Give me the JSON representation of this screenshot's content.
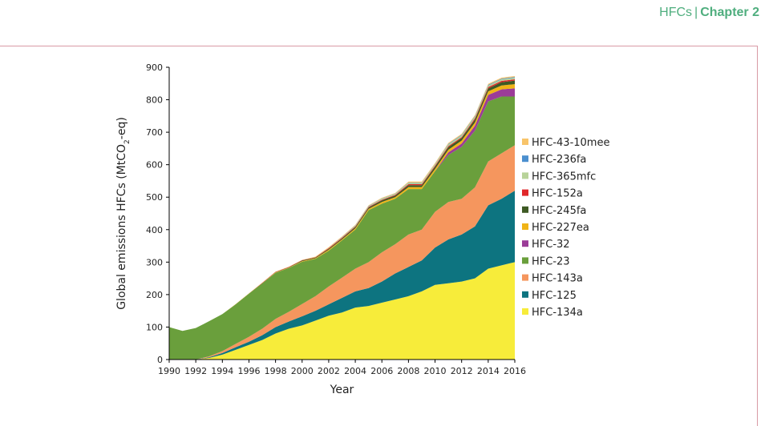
{
  "header": {
    "section": "HFCs",
    "separator": "|",
    "chapter": "Chapter 2"
  },
  "chart_data": {
    "type": "area",
    "stacked": true,
    "title": "",
    "xlabel": "Year",
    "ylabel": "Global emissions HFCs (MtCO",
    "ylabel_sub": "2",
    "ylabel_end": "-eq)",
    "xlim": [
      1990,
      2016
    ],
    "ylim": [
      0,
      900
    ],
    "x_ticks": [
      1990,
      1992,
      1994,
      1996,
      1998,
      2000,
      2002,
      2004,
      2006,
      2008,
      2010,
      2012,
      2014,
      2016
    ],
    "y_ticks": [
      0,
      100,
      200,
      300,
      400,
      500,
      600,
      700,
      800,
      900
    ],
    "legend_position": "right",
    "x": [
      1990,
      1991,
      1992,
      1993,
      1994,
      1995,
      1996,
      1997,
      1998,
      1999,
      2000,
      2001,
      2002,
      2003,
      2004,
      2005,
      2006,
      2007,
      2008,
      2009,
      2010,
      2011,
      2012,
      2013,
      2014,
      2015,
      2016
    ],
    "series": [
      {
        "name": "HFC-134a",
        "color": "#f7ec3a",
        "values": [
          0,
          0,
          0,
          5,
          15,
          30,
          45,
          60,
          80,
          95,
          105,
          120,
          135,
          145,
          160,
          165,
          175,
          185,
          195,
          210,
          230,
          235,
          240,
          250,
          280,
          290,
          300
        ]
      },
      {
        "name": "HFC-125",
        "color": "#0d7480",
        "values": [
          0,
          0,
          0,
          2,
          5,
          8,
          10,
          15,
          20,
          22,
          28,
          30,
          35,
          45,
          50,
          55,
          65,
          80,
          90,
          95,
          115,
          135,
          145,
          160,
          195,
          205,
          220
        ]
      },
      {
        "name": "HFC-143a",
        "color": "#f5965e",
        "values": [
          0,
          0,
          0,
          3,
          6,
          10,
          15,
          20,
          25,
          30,
          38,
          45,
          55,
          62,
          70,
          80,
          90,
          90,
          100,
          95,
          110,
          115,
          110,
          120,
          135,
          140,
          140
        ]
      },
      {
        "name": "HFC-23",
        "color": "#6a9f3c",
        "values": [
          100,
          88,
          97,
          108,
          114,
          122,
          133,
          140,
          142,
          135,
          130,
          115,
          110,
          115,
          120,
          160,
          150,
          140,
          140,
          125,
          125,
          145,
          160,
          175,
          185,
          175,
          150
        ]
      },
      {
        "name": "HFC-32",
        "color": "#9b3c98",
        "values": [
          0,
          0,
          0,
          0,
          0,
          0,
          0,
          0,
          0,
          0,
          0,
          0,
          0,
          0,
          0,
          0,
          0,
          0,
          0,
          0,
          0,
          8,
          10,
          15,
          20,
          22,
          25
        ]
      },
      {
        "name": "HFC-227ea",
        "color": "#f0b417",
        "values": [
          0,
          0,
          0,
          0,
          0,
          0,
          0,
          0,
          1,
          1,
          2,
          2,
          3,
          3,
          4,
          4,
          5,
          5,
          6,
          6,
          7,
          8,
          9,
          10,
          11,
          12,
          13
        ]
      },
      {
        "name": "HFC-245fa",
        "color": "#3e5a24",
        "values": [
          0,
          0,
          0,
          0,
          0,
          0,
          0,
          0,
          1,
          1,
          2,
          2,
          3,
          3,
          4,
          4,
          5,
          5,
          6,
          6,
          7,
          8,
          8,
          9,
          9,
          10,
          11
        ]
      },
      {
        "name": "HFC-152a",
        "color": "#e0272a",
        "values": [
          0,
          0,
          0,
          0,
          0,
          0,
          0,
          1,
          1,
          1,
          1,
          1,
          2,
          2,
          2,
          2,
          2,
          2,
          3,
          3,
          3,
          3,
          3,
          4,
          4,
          4,
          4
        ]
      },
      {
        "name": "HFC-365mfc",
        "color": "#b8d39a",
        "values": [
          0,
          0,
          0,
          0,
          0,
          0,
          0,
          0,
          0,
          0,
          0,
          0,
          1,
          1,
          2,
          2,
          3,
          3,
          4,
          4,
          4,
          5,
          5,
          5,
          5,
          5,
          5
        ]
      },
      {
        "name": "HFC-236fa",
        "color": "#4b8fcf",
        "values": [
          0,
          0,
          0,
          0,
          0,
          0,
          0,
          0,
          0,
          0,
          0,
          0,
          0,
          1,
          1,
          1,
          1,
          1,
          1,
          1,
          1,
          2,
          2,
          2,
          2,
          2,
          2
        ]
      },
      {
        "name": "HFC-43-10mee",
        "color": "#f8c46a",
        "values": [
          0,
          0,
          0,
          0,
          0,
          1,
          1,
          1,
          1,
          1,
          1,
          2,
          2,
          2,
          2,
          2,
          2,
          2,
          3,
          3,
          3,
          3,
          3,
          3,
          3,
          3,
          3
        ]
      }
    ],
    "legend_order": [
      "HFC-43-10mee",
      "HFC-236fa",
      "HFC-365mfc",
      "HFC-152a",
      "HFC-245fa",
      "HFC-227ea",
      "HFC-32",
      "HFC-23",
      "HFC-143a",
      "HFC-125",
      "HFC-134a"
    ]
  }
}
